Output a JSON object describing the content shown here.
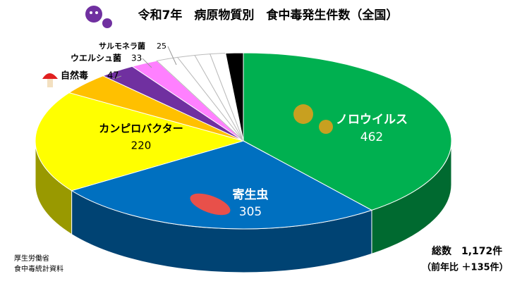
{
  "chart_data": {
    "type": "pie",
    "title": "令和7年　病原物質別　食中毒発生件数（全国）",
    "categories": [
      "ノロウイルス",
      "寄生虫",
      "カンピロバクター",
      "自然毒",
      "ウエルシュ菌",
      "サルモネラ菌",
      null,
      null,
      null,
      null,
      null
    ],
    "values": [
      462,
      305,
      220,
      47,
      33,
      25,
      20,
      16,
      14,
      14,
      16
    ],
    "colors": [
      "#00b050",
      "#0070c0",
      "#ffff00",
      "#ffc000",
      "#7030a0",
      "#ff80ff",
      "#ffffff",
      "#ffffff",
      "#ffffff",
      "#ffffff",
      "#000000"
    ],
    "annotations": [
      "総数　1,172件",
      "（前年比 ＋135件）"
    ],
    "source": [
      "厚生労働省",
      "食中毒統計資料"
    ]
  }
}
